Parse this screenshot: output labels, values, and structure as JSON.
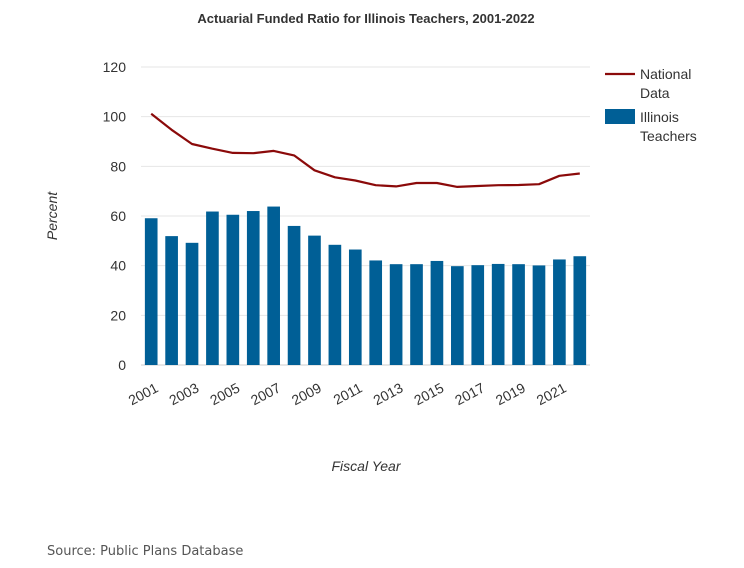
{
  "chart_data": {
    "type": "bar",
    "title": "Actuarial Funded Ratio for Illinois Teachers, 2001-2022",
    "xlabel": "Fiscal Year",
    "ylabel": "Percent",
    "ylim": [
      0,
      120
    ],
    "yticks": [
      0,
      20,
      40,
      60,
      80,
      100,
      120
    ],
    "x": [
      2001,
      2002,
      2003,
      2004,
      2005,
      2006,
      2007,
      2008,
      2009,
      2010,
      2011,
      2012,
      2013,
      2014,
      2015,
      2016,
      2017,
      2018,
      2019,
      2020,
      2021,
      2022
    ],
    "xtick_labels": [
      "2001",
      "2003",
      "2005",
      "2007",
      "2009",
      "2011",
      "2013",
      "2015",
      "2017",
      "2019",
      "2021"
    ],
    "grid": true,
    "legend_position": "right",
    "series": [
      {
        "name": "Illinois Teachers",
        "type": "bar",
        "color": "#005f96",
        "values": [
          59.1,
          51.9,
          49.2,
          61.8,
          60.5,
          62.0,
          63.8,
          56.0,
          52.1,
          48.4,
          46.5,
          42.1,
          40.6,
          40.6,
          41.9,
          39.8,
          40.2,
          40.7,
          40.6,
          40.1,
          42.5,
          43.8
        ]
      },
      {
        "name": "National Data",
        "type": "line",
        "color": "#8b0a0a",
        "values": [
          101.2,
          94.7,
          89.0,
          87.1,
          85.4,
          85.3,
          86.2,
          84.4,
          78.4,
          75.6,
          74.3,
          72.4,
          71.9,
          73.3,
          73.3,
          71.7,
          72.1,
          72.4,
          72.5,
          72.8,
          76.2,
          77.1
        ]
      }
    ]
  },
  "source_text": "Source: Public Plans Database"
}
